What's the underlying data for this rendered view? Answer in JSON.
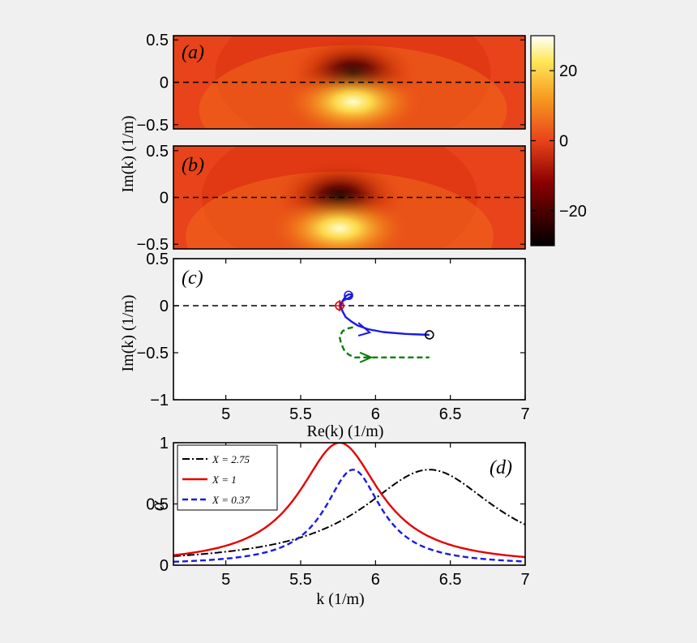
{
  "figure": {
    "panels": [
      {
        "id": "a",
        "tag": "(a)"
      },
      {
        "id": "b",
        "tag": "(b)"
      },
      {
        "id": "c",
        "tag": "(c)"
      },
      {
        "id": "d",
        "tag": "(d)"
      }
    ],
    "colors": {
      "background": "#f0f0f0",
      "map_base": "#e8431a",
      "map_dark": "#000000",
      "map_bright": "#ffffb0",
      "zero_line": "#000000",
      "blue_trajectory": "#1a1ae6",
      "green_trajectory": "#0a7d0a",
      "red_circle": "#e60000",
      "black_circle": "#000000"
    }
  },
  "labels": {
    "im_k": "Im(k)  (1/m)",
    "re_k": "Re(k)  (1/m)",
    "k_axis": "k  (1/m)",
    "alpha": "α"
  },
  "colorbar": {
    "ticks": [
      {
        "value": 20,
        "label": "20"
      },
      {
        "value": 0,
        "label": "0"
      },
      {
        "value": -20,
        "label": "−20"
      }
    ],
    "range": [
      -30,
      30
    ]
  },
  "chart_data": [
    {
      "panel": "a",
      "type": "heatmap",
      "xlim": [
        4.65,
        7
      ],
      "ylim": [
        -0.55,
        0.55
      ],
      "yticks": [
        0.5,
        0,
        -0.5
      ],
      "ytick_labels": [
        "0.5",
        "0",
        "−0.5"
      ],
      "ylabel": "Im(k)  (1/m)",
      "zero_line": 0,
      "zero": {
        "re": 5.85,
        "im": 0.1
      },
      "pole": {
        "re": 5.85,
        "im": -0.23
      },
      "color_range": [
        -30,
        30
      ]
    },
    {
      "panel": "b",
      "type": "heatmap",
      "xlim": [
        4.65,
        7
      ],
      "ylim": [
        -0.55,
        0.55
      ],
      "yticks": [
        0.5,
        0,
        -0.5
      ],
      "ytick_labels": [
        "0.5",
        "0",
        "−0.5"
      ],
      "ylabel": "Im(k)  (1/m)",
      "zero_line": 0,
      "zero": {
        "re": 5.76,
        "im": 0.0
      },
      "pole": {
        "re": 5.76,
        "im": -0.33
      },
      "color_range": [
        -30,
        30
      ]
    },
    {
      "panel": "c",
      "type": "line",
      "xlim": [
        4.65,
        7
      ],
      "ylim": [
        -1,
        0.5
      ],
      "xticks": [
        5,
        5.5,
        6,
        6.5,
        7
      ],
      "xtick_labels": [
        "5",
        "5.5",
        "6",
        "6.5",
        "7"
      ],
      "yticks": [
        0.5,
        0,
        -0.5,
        -1
      ],
      "ytick_labels": [
        "0.5",
        "0",
        "−0.5",
        "−1"
      ],
      "xlabel": "Re(k)  (1/m)",
      "ylabel": "Im(k)  (1/m)",
      "zero_line": 0,
      "series": [
        {
          "name": "zero trajectory",
          "style": "solid",
          "color": "#1a1ae6",
          "x": [
            6.36,
            6.2,
            6.05,
            5.95,
            5.88,
            5.84,
            5.8,
            5.78,
            5.77,
            5.76
          ],
          "y": [
            -0.31,
            -0.3,
            -0.28,
            -0.25,
            -0.21,
            -0.17,
            -0.12,
            -0.06,
            -0.02,
            0.0
          ]
        },
        {
          "name": "blue loop",
          "style": "solid",
          "color": "#1a1ae6",
          "x": [
            5.77,
            5.78,
            5.8,
            5.82,
            5.84,
            5.84,
            5.82,
            5.79,
            5.77,
            5.76
          ],
          "y": [
            0.0,
            0.05,
            0.1,
            0.12,
            0.12,
            0.1,
            0.08,
            0.06,
            0.03,
            0.0
          ]
        },
        {
          "name": "pole trajectory",
          "style": "dashed",
          "color": "#0a7d0a",
          "x": [
            5.85,
            5.82,
            5.78,
            5.76,
            5.77,
            5.79,
            5.82,
            5.86,
            5.95,
            6.1,
            6.36
          ],
          "y": [
            -0.23,
            -0.24,
            -0.27,
            -0.33,
            -0.4,
            -0.47,
            -0.52,
            -0.55,
            -0.55,
            -0.55,
            -0.55
          ]
        }
      ],
      "markers": [
        {
          "name": "red-circle",
          "x": 5.76,
          "y": 0.0,
          "color": "#e60000"
        },
        {
          "name": "blue-circle",
          "x": 5.82,
          "y": 0.11,
          "color": "#1a1ae6"
        },
        {
          "name": "black-circle",
          "x": 6.36,
          "y": -0.31,
          "color": "#000000"
        }
      ],
      "arrows": [
        {
          "name": "blue-arrow",
          "x": 5.95,
          "y": -0.25,
          "dir": "down-right",
          "color": "#1a1ae6"
        },
        {
          "name": "green-arrow",
          "x": 5.95,
          "y": -0.55,
          "dir": "right",
          "color": "#0a7d0a"
        }
      ]
    },
    {
      "panel": "d",
      "type": "line",
      "xlim": [
        4.65,
        7
      ],
      "ylim": [
        0,
        1
      ],
      "xticks": [
        5,
        5.5,
        6,
        6.5,
        7
      ],
      "xtick_labels": [
        "5",
        "5.5",
        "6",
        "6.5",
        "7"
      ],
      "yticks": [
        1,
        0.5,
        0
      ],
      "ytick_labels": [
        "1",
        "0.5",
        "0"
      ],
      "xlabel": "k  (1/m)",
      "ylabel": "α",
      "legend_position": "top-left",
      "series": [
        {
          "name": "X = 2.75",
          "style": "dashdot",
          "color": "#000000",
          "center": 6.36,
          "gamma": 0.55,
          "peak": 0.78
        },
        {
          "name": "X = 1",
          "style": "solid",
          "color": "#e60000",
          "center": 5.76,
          "gamma": 0.33,
          "peak": 1.0
        },
        {
          "name": "X = 0.37",
          "style": "dashed",
          "color": "#1a1ae6",
          "center": 5.85,
          "gamma": 0.23,
          "peak": 0.78
        }
      ]
    }
  ]
}
